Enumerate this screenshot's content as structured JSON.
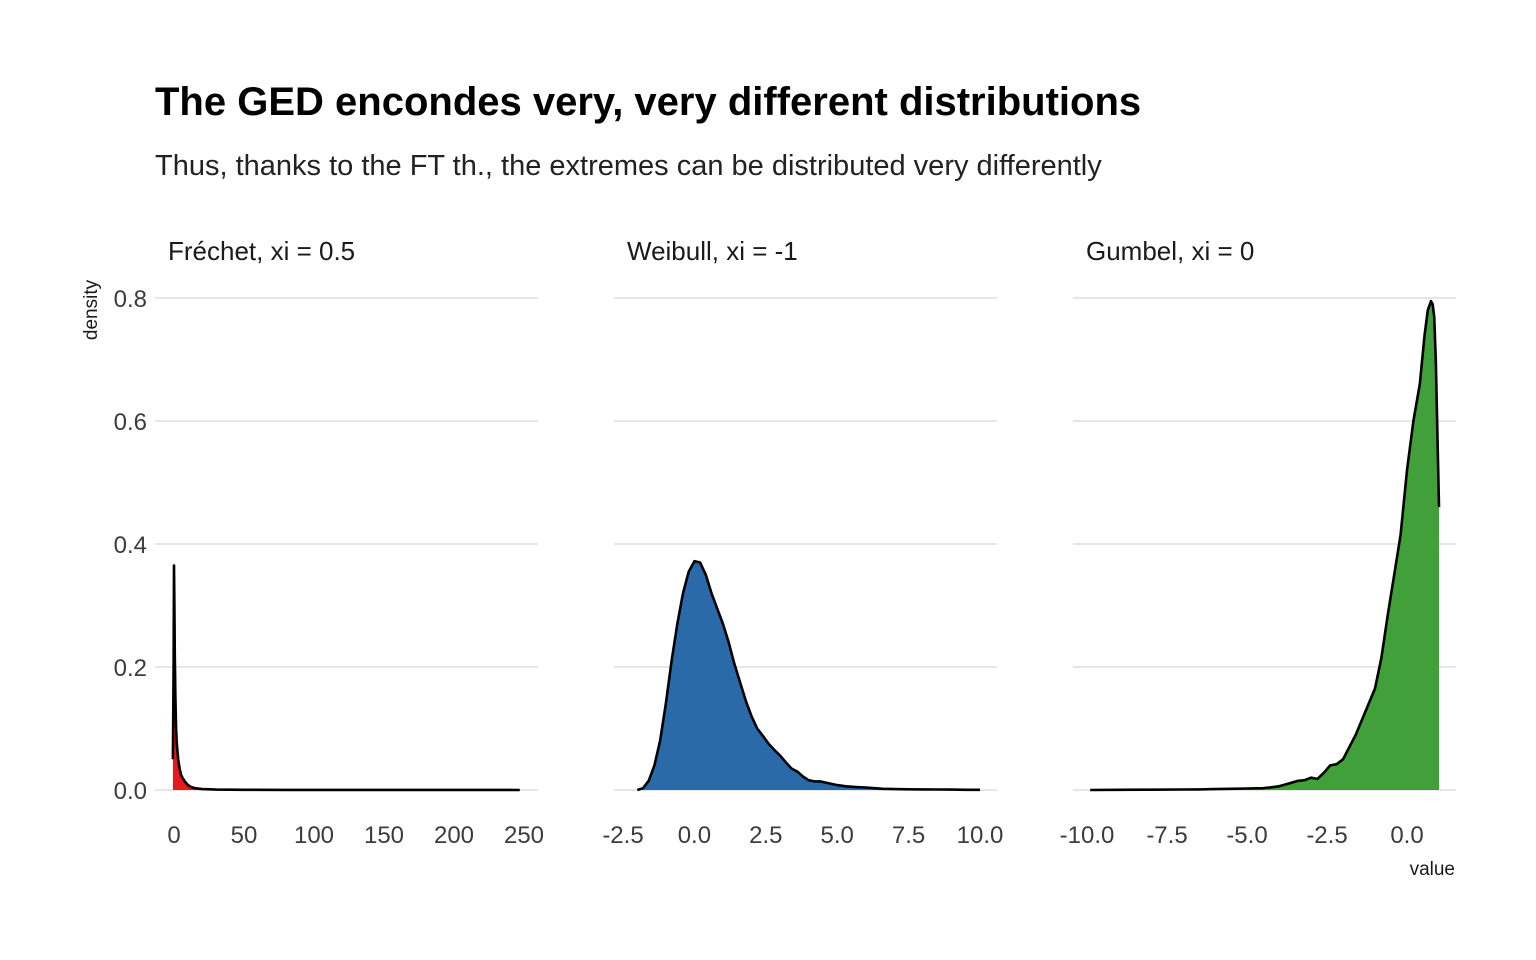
{
  "title": "The GED encondes very, very different distributions",
  "subtitle": "Thus, thanks to the FT th., the extremes can be distributed very differently",
  "chart_data": {
    "type": "area",
    "chart_kind": "faceted density",
    "title": "The GED encondes very, very different distributions",
    "subtitle": "Thus, thanks to the FT th., the extremes can be distributed very differently",
    "xlabel": "value",
    "ylabel": "density",
    "ylim": [
      0,
      0.8
    ],
    "y_ticks": [
      0,
      0.2,
      0.4,
      0.6,
      0.8
    ],
    "y_tick_labels": [
      "0.0",
      "0.2",
      "0.4",
      "0.6",
      "0.8"
    ],
    "grid": "horizontal major only",
    "legend": "none",
    "shared_y_axis": true,
    "panels": [
      {
        "name": "Fréchet, xi = 0.5",
        "color": "#E41A1C",
        "xlim": [
          0,
          250
        ],
        "x_ticks": [
          0,
          50,
          100,
          150,
          200,
          250
        ],
        "x_tick_labels": [
          "0",
          "50",
          "100",
          "150",
          "200",
          "250"
        ],
        "x": [
          -0.8,
          -0.3,
          0,
          0.3,
          0.6,
          1,
          1.5,
          2,
          3,
          4,
          5,
          6,
          8,
          10,
          12,
          15,
          20,
          30,
          50,
          80,
          120,
          170,
          210,
          247
        ],
        "y": [
          0.05,
          0.2,
          0.365,
          0.3,
          0.22,
          0.15,
          0.1,
          0.075,
          0.05,
          0.035,
          0.025,
          0.02,
          0.013,
          0.008,
          0.005,
          0.003,
          0.0015,
          0.0007,
          0.0003,
          0.0002,
          0.0001,
          0.0001,
          0.0001,
          0
        ]
      },
      {
        "name": "Weibull, xi = -1",
        "color": "#2B6AA8",
        "xlim": [
          -2.5,
          10
        ],
        "x_ticks": [
          -2.5,
          0,
          2.5,
          5,
          7.5,
          10
        ],
        "x_tick_labels": [
          "-2.5",
          "0.0",
          "2.5",
          "5.0",
          "7.5",
          "10.0"
        ],
        "x": [
          -2,
          -1.8,
          -1.6,
          -1.4,
          -1.2,
          -1.0,
          -0.8,
          -0.6,
          -0.4,
          -0.2,
          0,
          0.2,
          0.4,
          0.6,
          0.8,
          1.0,
          1.2,
          1.4,
          1.6,
          1.8,
          2.0,
          2.2,
          2.4,
          2.6,
          2.8,
          3.0,
          3.2,
          3.4,
          3.6,
          3.8,
          4.0,
          4.2,
          4.4,
          4.6,
          4.8,
          5.0,
          5.3,
          5.6,
          6.0,
          6.3,
          6.6,
          7.0,
          7.5,
          8.0,
          8.5,
          9.0,
          9.5,
          10.0
        ],
        "y": [
          0.0,
          0.003,
          0.015,
          0.04,
          0.08,
          0.14,
          0.21,
          0.27,
          0.32,
          0.355,
          0.372,
          0.37,
          0.35,
          0.32,
          0.295,
          0.27,
          0.24,
          0.205,
          0.175,
          0.145,
          0.12,
          0.1,
          0.088,
          0.075,
          0.065,
          0.056,
          0.045,
          0.035,
          0.03,
          0.022,
          0.016,
          0.014,
          0.014,
          0.012,
          0.01,
          0.008,
          0.006,
          0.005,
          0.004,
          0.003,
          0.002,
          0.0015,
          0.0012,
          0.001,
          0.0008,
          0.0006,
          0.0004,
          0.0003
        ]
      },
      {
        "name": "Gumbel, xi = 0",
        "color": "#41A03A",
        "xlim": [
          -10,
          1
        ],
        "x_ticks": [
          -10,
          -7.5,
          -5,
          -2.5,
          0
        ],
        "x_tick_labels": [
          "-10.0",
          "-7.5",
          "-5.0",
          "-2.5",
          "0.0"
        ],
        "x": [
          -9.9,
          -9.0,
          -8.0,
          -7.0,
          -6.5,
          -6.0,
          -5.5,
          -5.0,
          -4.5,
          -4.3,
          -4.0,
          -3.8,
          -3.6,
          -3.4,
          -3.2,
          -3.0,
          -2.8,
          -2.6,
          -2.4,
          -2.2,
          -2.0,
          -1.8,
          -1.6,
          -1.4,
          -1.2,
          -1.0,
          -0.8,
          -0.6,
          -0.4,
          -0.2,
          0.0,
          0.2,
          0.4,
          0.55,
          0.65,
          0.75,
          0.8,
          0.85,
          0.9,
          1.0
        ],
        "y": [
          0.0,
          0.0003,
          0.0005,
          0.0008,
          0.001,
          0.0015,
          0.002,
          0.0025,
          0.003,
          0.004,
          0.006,
          0.009,
          0.012,
          0.015,
          0.016,
          0.02,
          0.018,
          0.028,
          0.04,
          0.042,
          0.05,
          0.07,
          0.09,
          0.115,
          0.14,
          0.165,
          0.215,
          0.285,
          0.35,
          0.415,
          0.52,
          0.6,
          0.66,
          0.74,
          0.78,
          0.795,
          0.79,
          0.77,
          0.7,
          0.46
        ]
      }
    ]
  }
}
